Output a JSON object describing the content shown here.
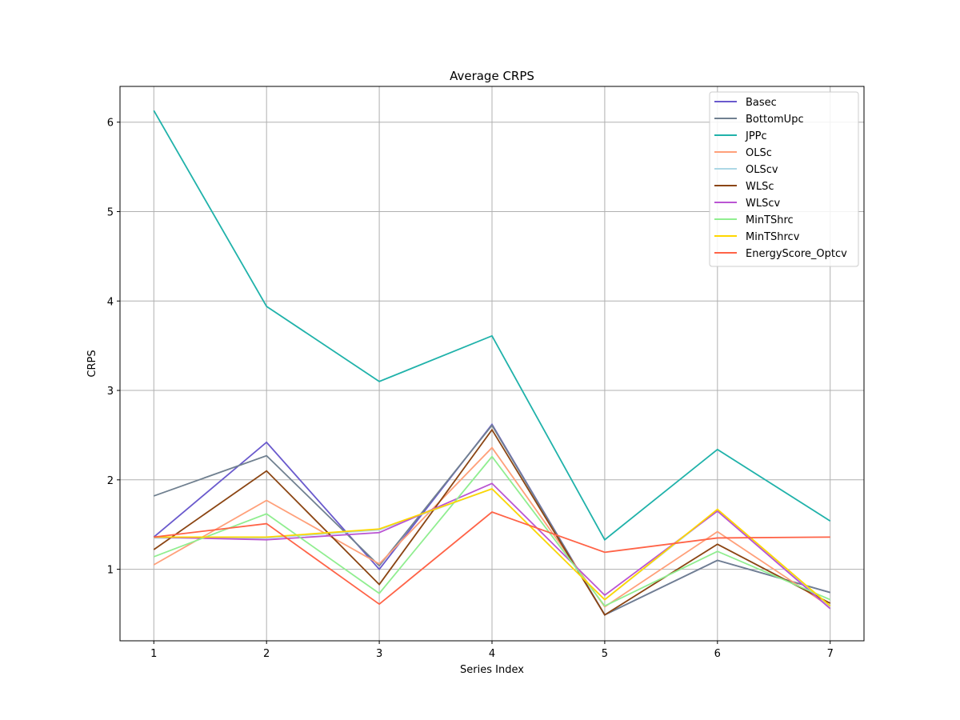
{
  "chart_data": {
    "type": "line",
    "title": "Average CRPS",
    "xlabel": "Series Index",
    "ylabel": "CRPS",
    "x": [
      1,
      2,
      3,
      4,
      5,
      6,
      7
    ],
    "xlim": [
      0.7,
      7.3
    ],
    "ylim": [
      0.2,
      6.4
    ],
    "yticks": [
      1,
      2,
      3,
      4,
      5,
      6
    ],
    "grid": true,
    "legend_position": "top-right",
    "series": [
      {
        "name": "Basec",
        "color": "#6a5acd",
        "values": [
          1.36,
          2.42,
          1.0,
          2.62,
          0.49,
          1.1,
          0.74
        ]
      },
      {
        "name": "BottomUpc",
        "color": "#708090",
        "values": [
          1.82,
          2.27,
          1.04,
          2.61,
          0.49,
          1.1,
          0.74
        ]
      },
      {
        "name": "JPPc",
        "color": "#20b2aa",
        "values": [
          6.13,
          3.94,
          3.1,
          3.61,
          1.33,
          2.34,
          1.54
        ]
      },
      {
        "name": "OLSc",
        "color": "#ffa07a",
        "values": [
          1.05,
          1.77,
          1.06,
          2.36,
          0.58,
          1.42,
          0.58
        ]
      },
      {
        "name": "OLScv",
        "color": "#add8e6",
        "values": [
          1.35,
          1.35,
          1.44,
          1.9,
          0.66,
          1.66,
          0.58
        ]
      },
      {
        "name": "WLSc",
        "color": "#8b4513",
        "values": [
          1.22,
          2.1,
          0.83,
          2.56,
          0.49,
          1.28,
          0.62
        ]
      },
      {
        "name": "WLScv",
        "color": "#ba55d3",
        "values": [
          1.36,
          1.33,
          1.41,
          1.96,
          0.71,
          1.65,
          0.56
        ]
      },
      {
        "name": "MinTShrc",
        "color": "#90ee90",
        "values": [
          1.14,
          1.62,
          0.73,
          2.26,
          0.59,
          1.2,
          0.66
        ]
      },
      {
        "name": "MinTShrcv",
        "color": "#ffd700",
        "values": [
          1.36,
          1.36,
          1.45,
          1.9,
          0.66,
          1.67,
          0.59
        ]
      },
      {
        "name": "EnergyScore_Optcv",
        "color": "#ff6347",
        "values": [
          1.36,
          1.51,
          0.61,
          1.64,
          1.19,
          1.35,
          1.36
        ]
      }
    ]
  }
}
